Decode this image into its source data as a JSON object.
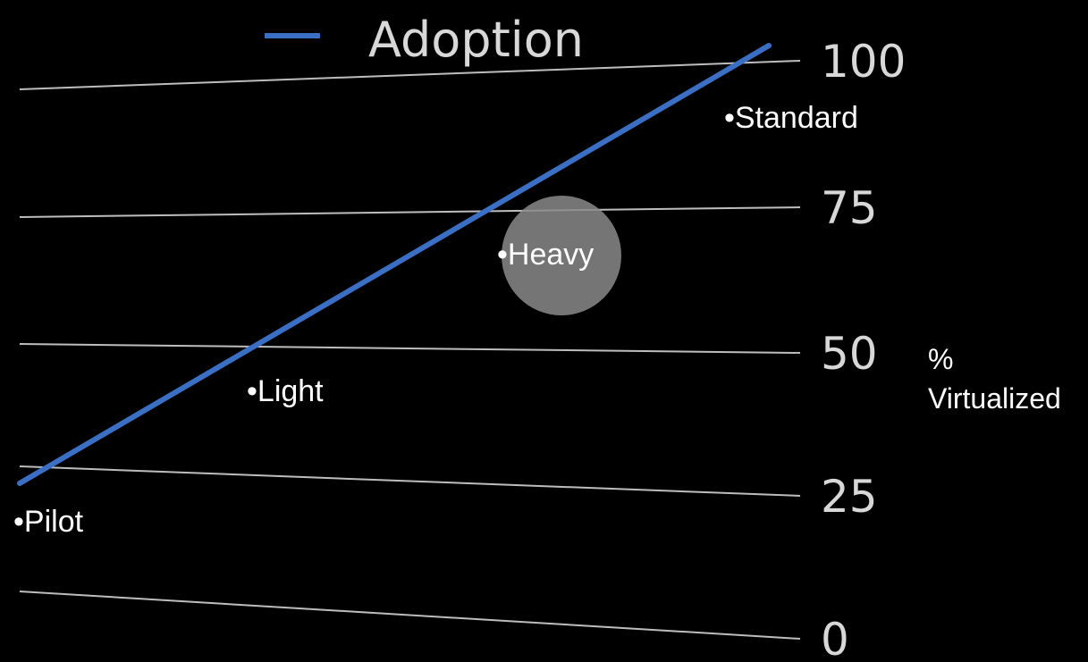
{
  "chart_data": {
    "type": "line",
    "legend": [
      "Adoption"
    ],
    "series": [
      {
        "name": "Adoption",
        "x": [
          0,
          100
        ],
        "values": [
          27,
          102
        ]
      }
    ],
    "yticks": [
      0,
      25,
      50,
      75,
      100
    ],
    "ylim": [
      0,
      100
    ],
    "ylabel": "% Virtualized",
    "stages": [
      {
        "label": "Pilot",
        "y": 19
      },
      {
        "label": "Light",
        "y": 44
      },
      {
        "label": "Heavy",
        "y": 67,
        "highlighted": true
      },
      {
        "label": "Standard",
        "y": 91
      }
    ],
    "legend_placement": "top-center",
    "grid": true,
    "colors": {
      "series": "#3a6fc4",
      "grid": "#bdbdbd",
      "highlight": "#8a8a8a",
      "background": "#000000"
    }
  }
}
